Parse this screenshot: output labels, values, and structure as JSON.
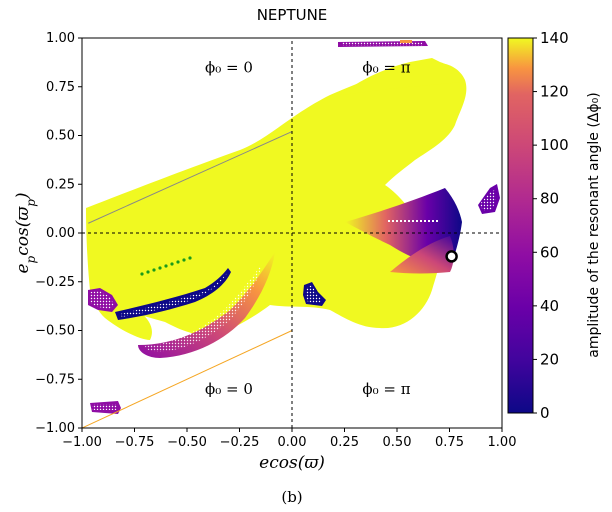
{
  "chart_data": {
    "type": "scatter",
    "title": "NEPTUNE",
    "xlabel": "ecos(ϖ)",
    "ylabel": "e_p cos(ϖ_p)",
    "xlim": [
      -1.0,
      1.0
    ],
    "ylim": [
      -1.0,
      1.0
    ],
    "x_ticks": [
      "−1.00",
      "−0.75",
      "−0.50",
      "−0.25",
      "0.00",
      "0.25",
      "0.50",
      "0.75",
      "1.00"
    ],
    "y_ticks": [
      "1.00",
      "0.75",
      "0.50",
      "0.25",
      "0.00",
      "−0.25",
      "−0.50",
      "−0.75",
      "−1.00"
    ],
    "regions": [
      {
        "text": "ϕ₀ = 0",
        "x": -0.3,
        "y": 0.85
      },
      {
        "text": "ϕ₀ = π",
        "x": 0.45,
        "y": 0.85
      },
      {
        "text": "ϕ₀ = 0",
        "x": -0.3,
        "y": -0.8
      },
      {
        "text": "ϕ₀ = π",
        "x": 0.45,
        "y": -0.8
      }
    ],
    "grid": false,
    "colorbar": {
      "label": "amplitude of the resonant angle (Δϕ₀)",
      "range": [
        0,
        140
      ],
      "ticks": [
        "0",
        "20",
        "40",
        "60",
        "80",
        "100",
        "120",
        "140"
      ],
      "colormap": "plasma"
    },
    "reference_lines": {
      "dashed_x": 0.0,
      "dashed_y": 0.0,
      "gray_line": [
        [
          -0.97,
          0.05
        ],
        [
          0.0,
          0.52
        ]
      ],
      "orange_line": [
        [
          -1.0,
          -1.0
        ],
        [
          0.0,
          -0.5
        ]
      ]
    },
    "marker": {
      "x": 0.76,
      "y": -0.12
    }
  },
  "caption": "(b)"
}
